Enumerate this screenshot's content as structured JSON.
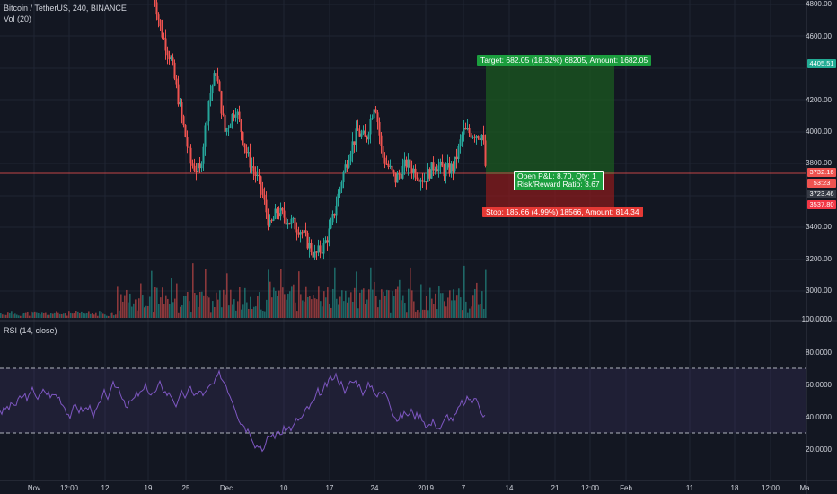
{
  "legend": {
    "symbol": "Bitcoin / TetherUS, 240, BINANCE",
    "volume": "Vol (20)",
    "rsi": "RSI (14, close)"
  },
  "price_axis": [
    "4800.00",
    "4600.00",
    "4400.00",
    "4200.00",
    "4000.00",
    "3800.00",
    "3600.00",
    "3400.00",
    "3200.00",
    "3000.00",
    "100.0000"
  ],
  "rsi_axis": [
    "80.0000",
    "60.0000",
    "40.0000",
    "20.0000"
  ],
  "time_axis": [
    "Nov",
    "12:00",
    "12",
    "19",
    "25",
    "Dec",
    "10",
    "17",
    "24",
    "2019",
    "7",
    "14",
    "21",
    "12:00",
    "Feb",
    "11",
    "18",
    "12:00",
    "Ma"
  ],
  "tags": {
    "target_price": "4405.51",
    "last_price": "3732.16",
    "countdown": "53:23",
    "crosshair": "3723.46",
    "stop_price": "3537.80"
  },
  "position": {
    "target_label": "Target: 682.05 (18.32%) 68205, Amount: 1682.05",
    "pnl_line1": "Open P&L: 8.70, Qty: 1",
    "pnl_line2": "Risk/Reward Ratio: 3.67",
    "stop_label": "Stop: 185.66 (4.99%) 18566, Amount: 814.34"
  },
  "colors": {
    "background": "#131722",
    "up": "#26a69a",
    "down": "#ef5350",
    "rsi_line": "#7e57c2",
    "target_zone": "#1b5e20",
    "stop_zone": "#8e1b1b"
  }
}
